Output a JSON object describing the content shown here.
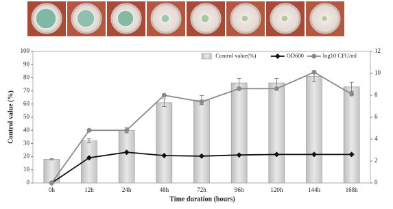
{
  "chart_data": {
    "type": "bar",
    "x_label": "Time duration (hours)",
    "y_label": "Control value (%)",
    "categories": [
      "0h",
      "12h",
      "24h",
      "48h",
      "72h",
      "96h",
      "120h",
      "144h",
      "168h"
    ],
    "ylim": [
      0,
      100
    ],
    "yticks": [
      0,
      10,
      20,
      30,
      40,
      50,
      60,
      70,
      80,
      90,
      100
    ],
    "y2lim": [
      0,
      12
    ],
    "y2ticks": [
      0,
      2,
      4,
      6,
      8,
      10,
      12
    ],
    "legend": "upper right",
    "series": [
      {
        "name": "Control value(%)",
        "type": "bar",
        "color": "#d6d6d6",
        "values": [
          18,
          32,
          40,
          61,
          63,
          76,
          76,
          81,
          73
        ],
        "errors": [
          0.5,
          1.5,
          2,
          3,
          3.5,
          3.5,
          3.5,
          4,
          3.5
        ]
      },
      {
        "name": "OD600",
        "type": "line",
        "marker": "diamond",
        "axis": "y2",
        "color": "#111111",
        "values": [
          0,
          2.3,
          2.8,
          2.5,
          2.45,
          2.55,
          2.6,
          2.6,
          2.6
        ]
      },
      {
        "name": "log10 CFU/ml",
        "type": "line",
        "marker": "circle",
        "axis": "y2",
        "color": "#8a8a8a",
        "values": [
          0,
          4.8,
          4.8,
          8.0,
          7.4,
          8.6,
          8.6,
          10.1,
          8.1
        ]
      }
    ]
  }
}
